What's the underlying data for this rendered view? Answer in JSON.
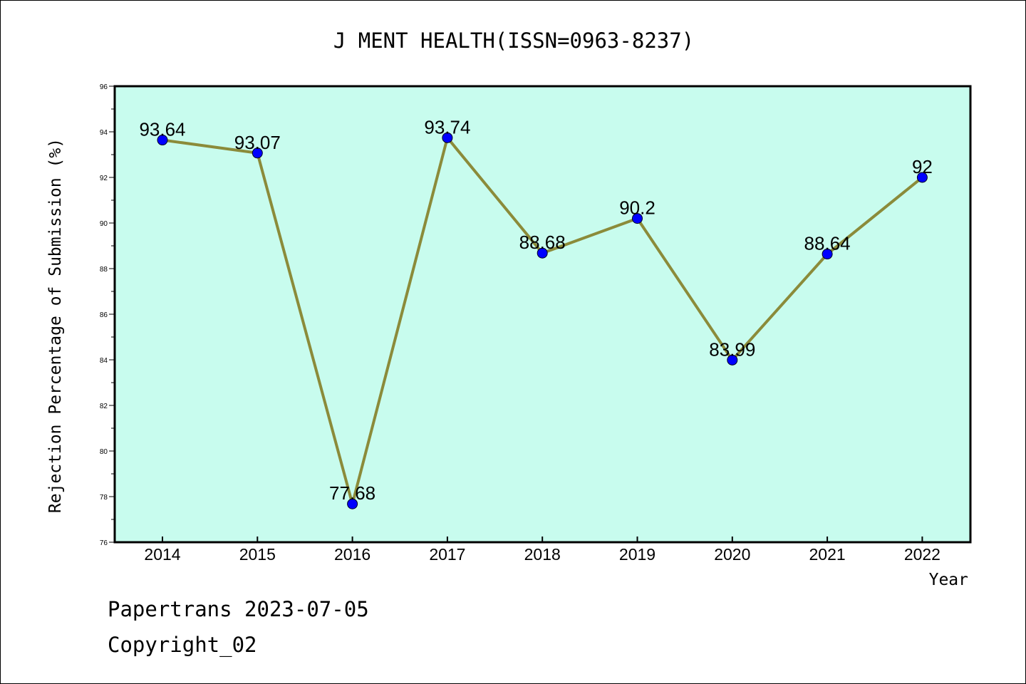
{
  "chart_data": {
    "type": "line",
    "title": "J MENT HEALTH(ISSN=0963-8237)",
    "xlabel": "Year",
    "ylabel": "Rejection Percentage of Submission (%)",
    "categories": [
      "2014",
      "2015",
      "2016",
      "2017",
      "2018",
      "2019",
      "2020",
      "2021",
      "2022"
    ],
    "series": [
      {
        "values": [
          93.64,
          93.07,
          77.68,
          93.74,
          88.68,
          90.2,
          83.99,
          88.64,
          92
        ],
        "labels": [
          "93.64",
          "93.07",
          "77.68",
          "93.74",
          "88.68",
          "90.2",
          "83.99",
          "88.64",
          "92"
        ]
      }
    ],
    "ylim": [
      76,
      96
    ],
    "yticks": [
      "76",
      "78",
      "80",
      "82",
      "84",
      "86",
      "88",
      "90",
      "92",
      "94",
      "96"
    ],
    "grid": false,
    "legend": "none",
    "colors": {
      "plot_background": "#c8fcee",
      "line": "#8b8b3a",
      "marker": "#0000ff"
    }
  },
  "footer": {
    "source": "Papertrans 2023-07-05",
    "copyright": "Copyright_02"
  }
}
